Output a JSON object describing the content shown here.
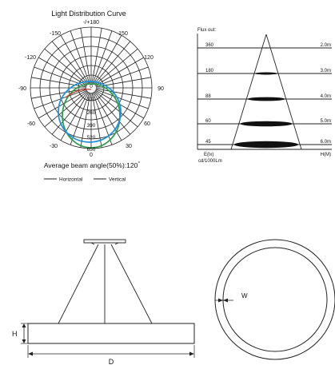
{
  "polar": {
    "title": "Light Distribution Curve",
    "angles_top": [
      "-/+180",
      "150",
      "-150"
    ],
    "angles_side": [
      "-120",
      "120",
      "-90",
      "90",
      "-60",
      "60",
      "-30",
      "30",
      "0"
    ],
    "radial_labels": [
      "0",
      "130",
      "260",
      "390",
      "520",
      "650"
    ],
    "beam_text": "Average beam angle(50%):120",
    "beam_degree": "°",
    "legend": [
      {
        "label": "Horizontal",
        "color": "#2e8b57"
      },
      {
        "label": "Vertical",
        "color": "#1a8fd8"
      }
    ]
  },
  "flux": {
    "title": "Flux out:",
    "rows": [
      {
        "cd": "360",
        "dist": "2.0m"
      },
      {
        "cd": "180",
        "dist": "3.0m"
      },
      {
        "cd": "88",
        "dist": "4.0m"
      },
      {
        "cd": "60",
        "dist": "5.0m"
      },
      {
        "cd": "45",
        "dist": "6.0m"
      }
    ],
    "footer_left": "E(lx)",
    "footer_right": "H(M)",
    "unit": "cd/1000Lm"
  },
  "dimensions": {
    "height_label": "H",
    "diameter_label": "D",
    "width_label": "W"
  }
}
